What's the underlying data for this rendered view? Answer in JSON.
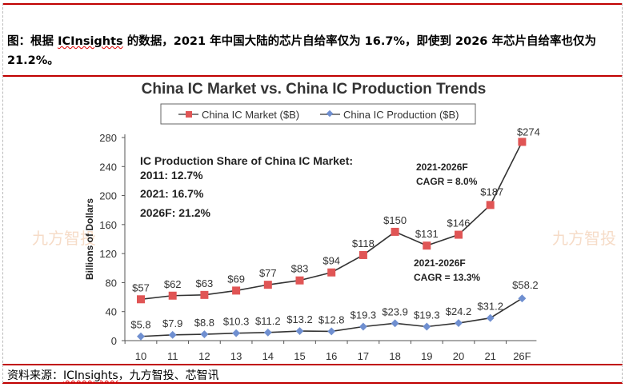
{
  "caption": {
    "prefix": "图：根据 ",
    "link": "ICInsights",
    "suffix": " 的数据，2021 年中国大陆的芯片自给率仅为 16.7%，即使到 2026 年芯片自给率也仅为 21.2%。"
  },
  "source": {
    "prefix": "资料来源：",
    "link": "ICInsights",
    "suffix": "，九方智投、芯智讯"
  },
  "watermark": "九方智投",
  "chart_data": {
    "type": "line",
    "title": "China IC Market vs. China IC Production Trends",
    "xlabel": "",
    "ylabel": "Billions of Dollars",
    "ylim": [
      0,
      280
    ],
    "yticks": [
      0,
      40,
      80,
      120,
      160,
      200,
      240,
      280
    ],
    "categories": [
      "10",
      "11",
      "12",
      "13",
      "14",
      "15",
      "16",
      "17",
      "18",
      "19",
      "20",
      "21",
      "26F"
    ],
    "series": [
      {
        "name": "China IC Market ($B)",
        "color": "#e05555",
        "marker": "square",
        "values": [
          57,
          62,
          63,
          69,
          77,
          83,
          94,
          118,
          150,
          131,
          146,
          187,
          274
        ],
        "labels": [
          "$57",
          "$62",
          "$63",
          "$69",
          "$77",
          "$83",
          "$94",
          "$118",
          "$150",
          "$131",
          "$146",
          "$187",
          "$274"
        ]
      },
      {
        "name": "China IC Production ($B)",
        "color": "#6f8fd0",
        "marker": "diamond",
        "values": [
          5.8,
          7.9,
          8.8,
          10.3,
          11.2,
          13.2,
          12.8,
          19.3,
          23.9,
          19.3,
          24.2,
          31.2,
          58.2
        ],
        "labels": [
          "$5.8",
          "$7.9",
          "$8.8",
          "$10.3",
          "$11.2",
          "$13.2",
          "$12.8",
          "$19.3",
          "$23.9",
          "$19.3",
          "$24.2",
          "$31.2",
          "$58.2"
        ]
      }
    ],
    "legend_position": "top",
    "annotations": {
      "share_title": "IC Production Share of China IC Market:",
      "share_lines": [
        "2011: 12.7%",
        "2021: 16.7%",
        "2026F: 21.2%"
      ],
      "market_cagr": [
        "2021-2026F",
        "CAGR = 8.0%"
      ],
      "production_cagr": [
        "2021-2026F",
        "CAGR = 13.3%"
      ]
    }
  }
}
